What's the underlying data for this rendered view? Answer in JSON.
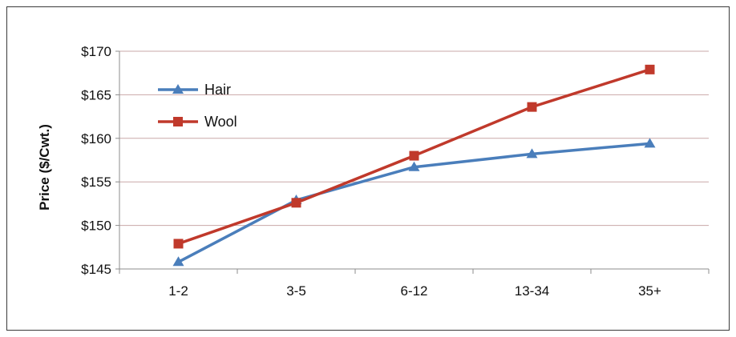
{
  "chart_data": {
    "type": "line",
    "categories": [
      "1-2",
      "3-5",
      "6-12",
      "13-34",
      "35+"
    ],
    "series": [
      {
        "name": "Hair",
        "color": "#4a7ebb",
        "marker": "triangle",
        "values": [
          145.8,
          152.9,
          156.7,
          158.2,
          159.4
        ]
      },
      {
        "name": "Wool",
        "color": "#c0392b",
        "marker": "square",
        "values": [
          147.9,
          152.6,
          158.0,
          163.6,
          167.9
        ]
      }
    ],
    "ylabel": "Price ($/Cwt.)",
    "xlabel": "",
    "ylim": [
      145,
      170
    ],
    "yticks": [
      145,
      150,
      155,
      160,
      165,
      170
    ],
    "ytick_labels": [
      "$145",
      "$150",
      "$155",
      "$160",
      "$165",
      "$170"
    ],
    "grid": true,
    "legend_position": "top-left"
  }
}
